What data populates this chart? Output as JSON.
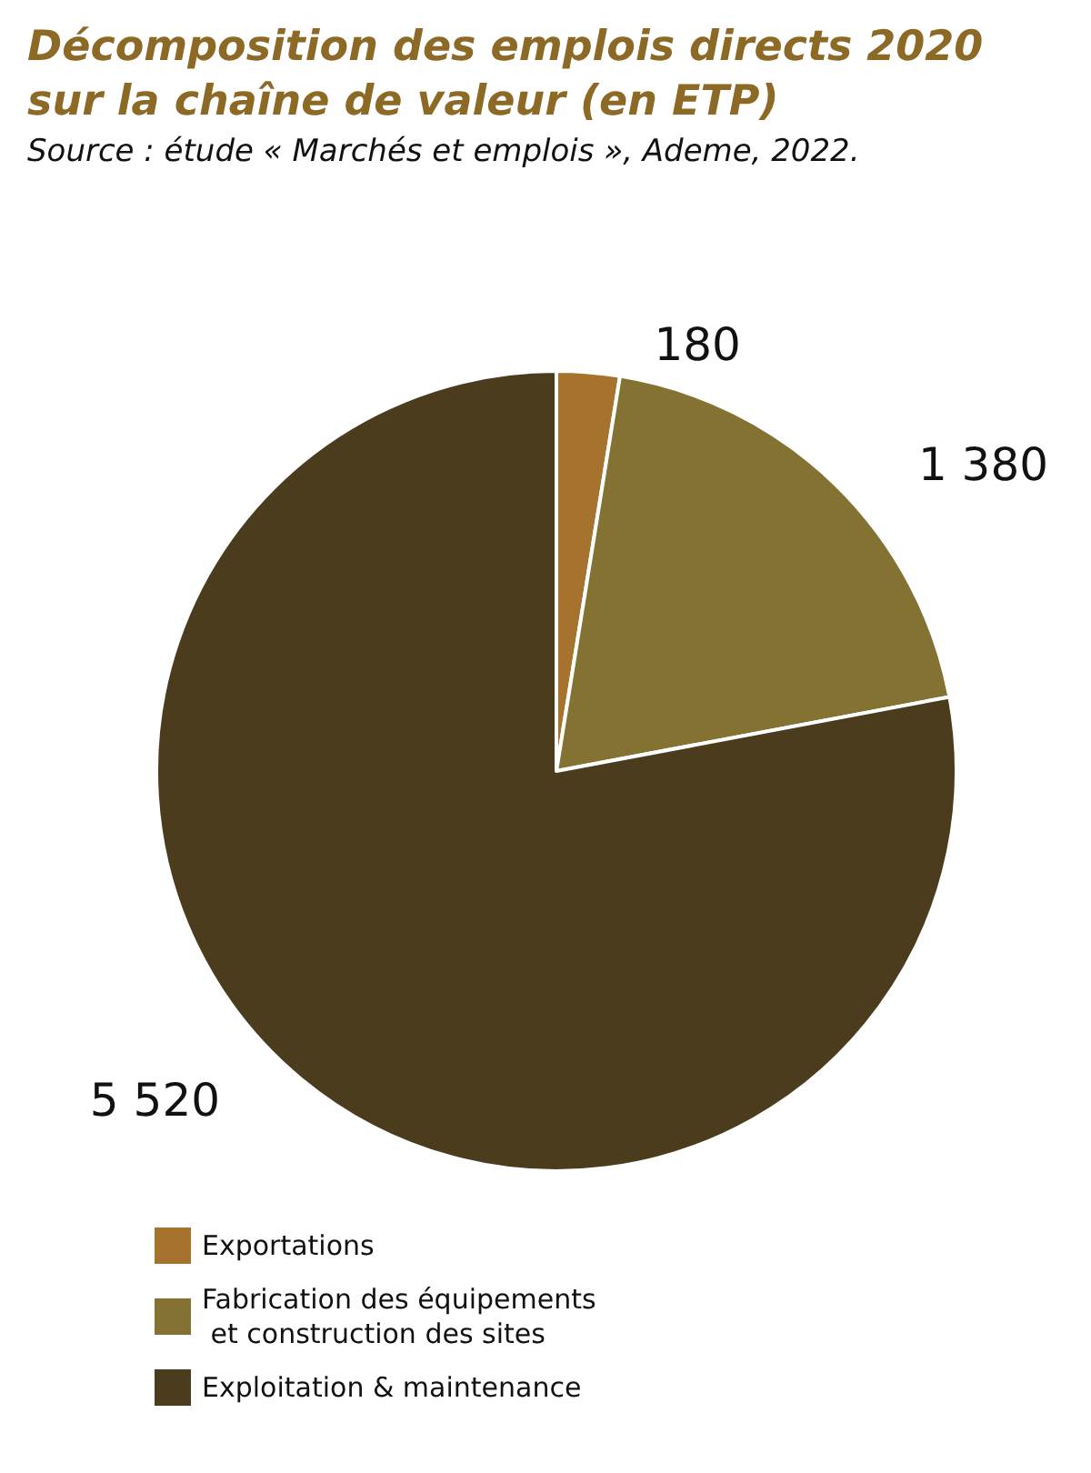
{
  "chart_data": {
    "type": "pie",
    "title": "Décomposition des emplois directs 2020 sur la chaîne de valeur (en ETP)",
    "subtitle": "Source : étude « Marchés et emplois », Ademe, 2022.",
    "categories": [
      "Exportations",
      "Fabrication des équipements et construction des sites",
      "Exploitation & maintenance"
    ],
    "values": [
      180,
      1380,
      5520
    ],
    "value_labels": [
      "180",
      "1 380",
      "5 520"
    ],
    "colors": [
      "#a6732e",
      "#847232",
      "#4a3c1c"
    ],
    "legend": "bottom left"
  }
}
